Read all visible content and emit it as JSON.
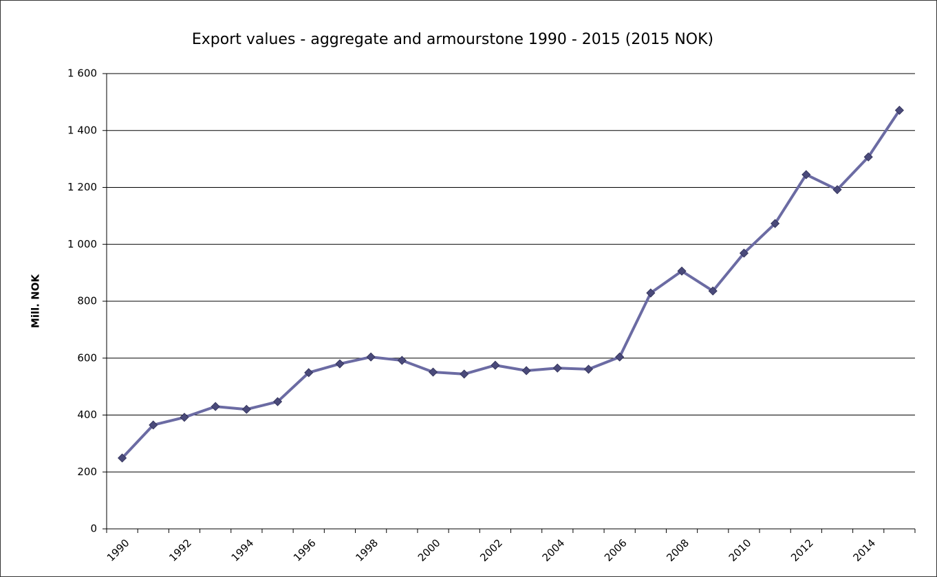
{
  "chart_data": {
    "type": "line",
    "title": "Export values - aggregate and armourstone 1990 - 2015 (2015 NOK)",
    "y_label": "Mill. NOK",
    "categories": [
      "1990",
      null,
      "1992",
      null,
      "1994",
      null,
      "1996",
      null,
      "1998",
      null,
      "2000",
      null,
      "2002",
      null,
      "2004",
      null,
      "2006",
      null,
      "2008",
      null,
      "2010",
      null,
      "2012",
      null,
      "2014",
      null
    ],
    "series": [
      {
        "name": "Export values",
        "color": "#6b6ba3",
        "marker_color": "#4a4a7a",
        "values": [
          249,
          365,
          392,
          430,
          420,
          447,
          549,
          580,
          604,
          592,
          551,
          544,
          575,
          556,
          565,
          561,
          604,
          829,
          906,
          836,
          969,
          1073,
          1245,
          1192,
          1307,
          1471
        ]
      }
    ],
    "ylim": [
      0,
      1600
    ],
    "yticks": [
      0,
      {
        "value": 200,
        "label": "200"
      },
      {
        "value": 400,
        "label": "400"
      },
      {
        "value": 600,
        "label": "600"
      },
      {
        "value": 800,
        "label": "800"
      },
      {
        "value": 1000,
        "label": "1 000"
      },
      {
        "value": 1200,
        "label": "1 200"
      },
      {
        "value": 1400,
        "label": "1 400"
      },
      {
        "value": 1600,
        "label": "1 600"
      }
    ],
    "grid": true
  }
}
